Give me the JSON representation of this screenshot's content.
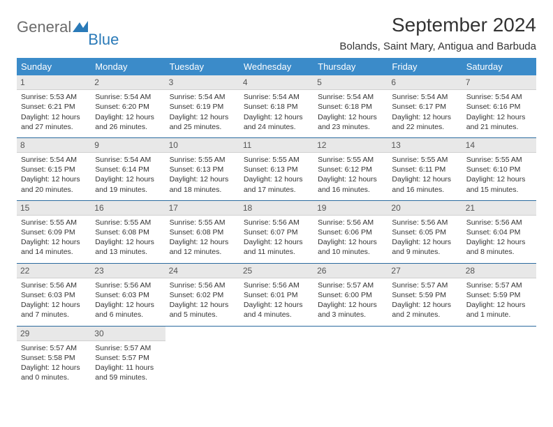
{
  "logo": {
    "text1": "General",
    "text2": "Blue"
  },
  "title": "September 2024",
  "location": "Bolands, Saint Mary, Antigua and Barbuda",
  "colors": {
    "header_bg": "#3b8bc9",
    "header_fg": "#ffffff",
    "daynum_bg": "#e8e8e8",
    "border": "#2a6a9e",
    "logo_gray": "#6b6b6b",
    "logo_blue": "#2a7ab8"
  },
  "day_headers": [
    "Sunday",
    "Monday",
    "Tuesday",
    "Wednesday",
    "Thursday",
    "Friday",
    "Saturday"
  ],
  "weeks": [
    [
      {
        "n": "1",
        "sr": "5:53 AM",
        "ss": "6:21 PM",
        "dl": "12 hours and 27 minutes."
      },
      {
        "n": "2",
        "sr": "5:54 AM",
        "ss": "6:20 PM",
        "dl": "12 hours and 26 minutes."
      },
      {
        "n": "3",
        "sr": "5:54 AM",
        "ss": "6:19 PM",
        "dl": "12 hours and 25 minutes."
      },
      {
        "n": "4",
        "sr": "5:54 AM",
        "ss": "6:18 PM",
        "dl": "12 hours and 24 minutes."
      },
      {
        "n": "5",
        "sr": "5:54 AM",
        "ss": "6:18 PM",
        "dl": "12 hours and 23 minutes."
      },
      {
        "n": "6",
        "sr": "5:54 AM",
        "ss": "6:17 PM",
        "dl": "12 hours and 22 minutes."
      },
      {
        "n": "7",
        "sr": "5:54 AM",
        "ss": "6:16 PM",
        "dl": "12 hours and 21 minutes."
      }
    ],
    [
      {
        "n": "8",
        "sr": "5:54 AM",
        "ss": "6:15 PM",
        "dl": "12 hours and 20 minutes."
      },
      {
        "n": "9",
        "sr": "5:54 AM",
        "ss": "6:14 PM",
        "dl": "12 hours and 19 minutes."
      },
      {
        "n": "10",
        "sr": "5:55 AM",
        "ss": "6:13 PM",
        "dl": "12 hours and 18 minutes."
      },
      {
        "n": "11",
        "sr": "5:55 AM",
        "ss": "6:13 PM",
        "dl": "12 hours and 17 minutes."
      },
      {
        "n": "12",
        "sr": "5:55 AM",
        "ss": "6:12 PM",
        "dl": "12 hours and 16 minutes."
      },
      {
        "n": "13",
        "sr": "5:55 AM",
        "ss": "6:11 PM",
        "dl": "12 hours and 16 minutes."
      },
      {
        "n": "14",
        "sr": "5:55 AM",
        "ss": "6:10 PM",
        "dl": "12 hours and 15 minutes."
      }
    ],
    [
      {
        "n": "15",
        "sr": "5:55 AM",
        "ss": "6:09 PM",
        "dl": "12 hours and 14 minutes."
      },
      {
        "n": "16",
        "sr": "5:55 AM",
        "ss": "6:08 PM",
        "dl": "12 hours and 13 minutes."
      },
      {
        "n": "17",
        "sr": "5:55 AM",
        "ss": "6:08 PM",
        "dl": "12 hours and 12 minutes."
      },
      {
        "n": "18",
        "sr": "5:56 AM",
        "ss": "6:07 PM",
        "dl": "12 hours and 11 minutes."
      },
      {
        "n": "19",
        "sr": "5:56 AM",
        "ss": "6:06 PM",
        "dl": "12 hours and 10 minutes."
      },
      {
        "n": "20",
        "sr": "5:56 AM",
        "ss": "6:05 PM",
        "dl": "12 hours and 9 minutes."
      },
      {
        "n": "21",
        "sr": "5:56 AM",
        "ss": "6:04 PM",
        "dl": "12 hours and 8 minutes."
      }
    ],
    [
      {
        "n": "22",
        "sr": "5:56 AM",
        "ss": "6:03 PM",
        "dl": "12 hours and 7 minutes."
      },
      {
        "n": "23",
        "sr": "5:56 AM",
        "ss": "6:03 PM",
        "dl": "12 hours and 6 minutes."
      },
      {
        "n": "24",
        "sr": "5:56 AM",
        "ss": "6:02 PM",
        "dl": "12 hours and 5 minutes."
      },
      {
        "n": "25",
        "sr": "5:56 AM",
        "ss": "6:01 PM",
        "dl": "12 hours and 4 minutes."
      },
      {
        "n": "26",
        "sr": "5:57 AM",
        "ss": "6:00 PM",
        "dl": "12 hours and 3 minutes."
      },
      {
        "n": "27",
        "sr": "5:57 AM",
        "ss": "5:59 PM",
        "dl": "12 hours and 2 minutes."
      },
      {
        "n": "28",
        "sr": "5:57 AM",
        "ss": "5:59 PM",
        "dl": "12 hours and 1 minute."
      }
    ],
    [
      {
        "n": "29",
        "sr": "5:57 AM",
        "ss": "5:58 PM",
        "dl": "12 hours and 0 minutes."
      },
      {
        "n": "30",
        "sr": "5:57 AM",
        "ss": "5:57 PM",
        "dl": "11 hours and 59 minutes."
      },
      null,
      null,
      null,
      null,
      null
    ]
  ],
  "labels": {
    "sunrise": "Sunrise: ",
    "sunset": "Sunset: ",
    "daylight": "Daylight: "
  }
}
